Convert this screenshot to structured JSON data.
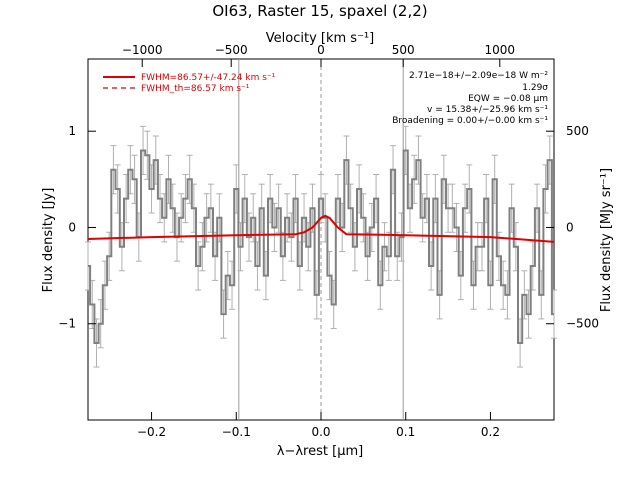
{
  "chart_data": {
    "type": "line",
    "title": "OI63, Raster 15, spaxel (2,2)",
    "xlabel": "λ−λrest [μm]",
    "ylabel_left": "Flux density [Jy]",
    "ylabel_right": "Flux density [MJy sr⁻¹]",
    "xlabel_top": "Velocity [km s⁻¹]",
    "xlim": [
      -0.275,
      0.275
    ],
    "ylim": [
      -2.0,
      1.75
    ],
    "x_ticks": [
      -0.2,
      -0.1,
      0.0,
      0.1,
      0.2
    ],
    "x_tick_labels": [
      "−0.2",
      "−0.1",
      "0.0",
      "0.1",
      "0.2"
    ],
    "y_left_ticks": [
      -1,
      0,
      1
    ],
    "y_left_tick_labels": [
      "−1",
      "0",
      "1"
    ],
    "y_right_ticks": [
      -1.0,
      0.0,
      1.0
    ],
    "y_right_tick_labels": [
      "−500",
      "0",
      "500"
    ],
    "top_ticks": [
      -0.211,
      -0.106,
      0.0,
      0.097,
      0.211
    ],
    "top_tick_labels": [
      "−1000",
      "−500",
      "0",
      "500",
      "1000"
    ],
    "vlines_gray": [
      -0.097,
      0.097
    ],
    "vline_dashed": 0.0,
    "spectrum": {
      "x": [
        -0.275,
        -0.27,
        -0.265,
        -0.26,
        -0.255,
        -0.25,
        -0.245,
        -0.24,
        -0.235,
        -0.23,
        -0.225,
        -0.22,
        -0.215,
        -0.21,
        -0.205,
        -0.2,
        -0.195,
        -0.19,
        -0.185,
        -0.18,
        -0.175,
        -0.17,
        -0.165,
        -0.16,
        -0.155,
        -0.15,
        -0.145,
        -0.14,
        -0.135,
        -0.13,
        -0.125,
        -0.12,
        -0.115,
        -0.11,
        -0.105,
        -0.1,
        -0.095,
        -0.09,
        -0.085,
        -0.08,
        -0.075,
        -0.07,
        -0.065,
        -0.06,
        -0.055,
        -0.05,
        -0.045,
        -0.04,
        -0.035,
        -0.03,
        -0.025,
        -0.02,
        -0.015,
        -0.01,
        -0.005,
        0.0,
        0.005,
        0.01,
        0.015,
        0.02,
        0.025,
        0.03,
        0.035,
        0.04,
        0.045,
        0.05,
        0.055,
        0.06,
        0.065,
        0.07,
        0.075,
        0.08,
        0.085,
        0.09,
        0.095,
        0.1,
        0.105,
        0.11,
        0.115,
        0.12,
        0.125,
        0.13,
        0.135,
        0.14,
        0.145,
        0.15,
        0.155,
        0.16,
        0.165,
        0.17,
        0.175,
        0.18,
        0.185,
        0.19,
        0.195,
        0.2,
        0.205,
        0.21,
        0.215,
        0.22,
        0.225,
        0.23,
        0.235,
        0.24,
        0.245,
        0.25,
        0.255,
        0.26,
        0.265,
        0.27,
        0.275
      ],
      "y": [
        -0.4,
        -0.8,
        -1.2,
        -1.0,
        -0.6,
        -0.3,
        0.6,
        0.4,
        -0.2,
        0.3,
        0.6,
        0.5,
        -0.1,
        0.8,
        0.75,
        0.4,
        0.7,
        0.3,
        0.1,
        0.5,
        0.2,
        -0.1,
        0.1,
        0.3,
        0.5,
        0.2,
        -0.4,
        -0.2,
        0.1,
        0.2,
        -0.3,
        0.1,
        -0.9,
        -0.5,
        -0.6,
        0.4,
        -0.2,
        0.3,
        -0.1,
        0.1,
        -0.4,
        0.2,
        -0.5,
        0.3,
        0.0,
        0.2,
        -0.3,
        0.1,
        -0.1,
        0.3,
        -0.4,
        0.1,
        -0.2,
        0.2,
        -0.7,
        0.3,
        0.1,
        -0.5,
        -0.8,
        0.3,
        0.0,
        0.7,
        0.2,
        -0.2,
        0.4,
        0.1,
        -0.3,
        0.0,
        0.3,
        -0.6,
        -0.2,
        -0.3,
        0.6,
        -0.3,
        -0.1,
        0.8,
        0.2,
        0.5,
        0.7,
        0.1,
        0.3,
        -0.4,
        0.3,
        -0.7,
        0.5,
        0.2,
        0.2,
        0.0,
        -0.5,
        0.2,
        0.4,
        -0.6,
        -0.2,
        -0.2,
        0.3,
        -0.6,
        0.5,
        -0.3,
        -0.6,
        -0.7,
        0.2,
        -0.2,
        -1.2,
        -0.7,
        -0.9,
        -0.4,
        0.2,
        -0.7,
        0.4,
        0.7,
        -0.9
      ],
      "err": 0.25
    },
    "fit": {
      "x": [
        -0.275,
        -0.2,
        -0.1,
        -0.03,
        -0.02,
        -0.01,
        -0.005,
        0.0,
        0.005,
        0.01,
        0.015,
        0.02,
        0.03,
        0.1,
        0.2,
        0.275
      ],
      "y": [
        -0.12,
        -0.1,
        -0.08,
        -0.07,
        -0.05,
        0.0,
        0.05,
        0.1,
        0.12,
        0.1,
        0.05,
        0.0,
        -0.07,
        -0.08,
        -0.1,
        -0.15
      ]
    },
    "legend": [
      {
        "label": "FWHM=86.57+/-47.24 km s⁻¹",
        "style": "solid",
        "color": "#e00000"
      },
      {
        "label": "FWHM_th=86.57 km s⁻¹",
        "style": "dashed",
        "color": "#e00000"
      }
    ],
    "annotations": [
      "2.71e−18+/−2.09e−18 W m⁻²",
      "1.29σ",
      "EQW = −0.08 μm",
      "v = 15.38+/−25.96 km s⁻¹",
      "Broadening = 0.00+/−0.00 km s⁻¹"
    ],
    "colors": {
      "spectrum": "#808080",
      "error": "#b0b0b0",
      "fit": "#e00000",
      "vline": "#999999"
    }
  }
}
